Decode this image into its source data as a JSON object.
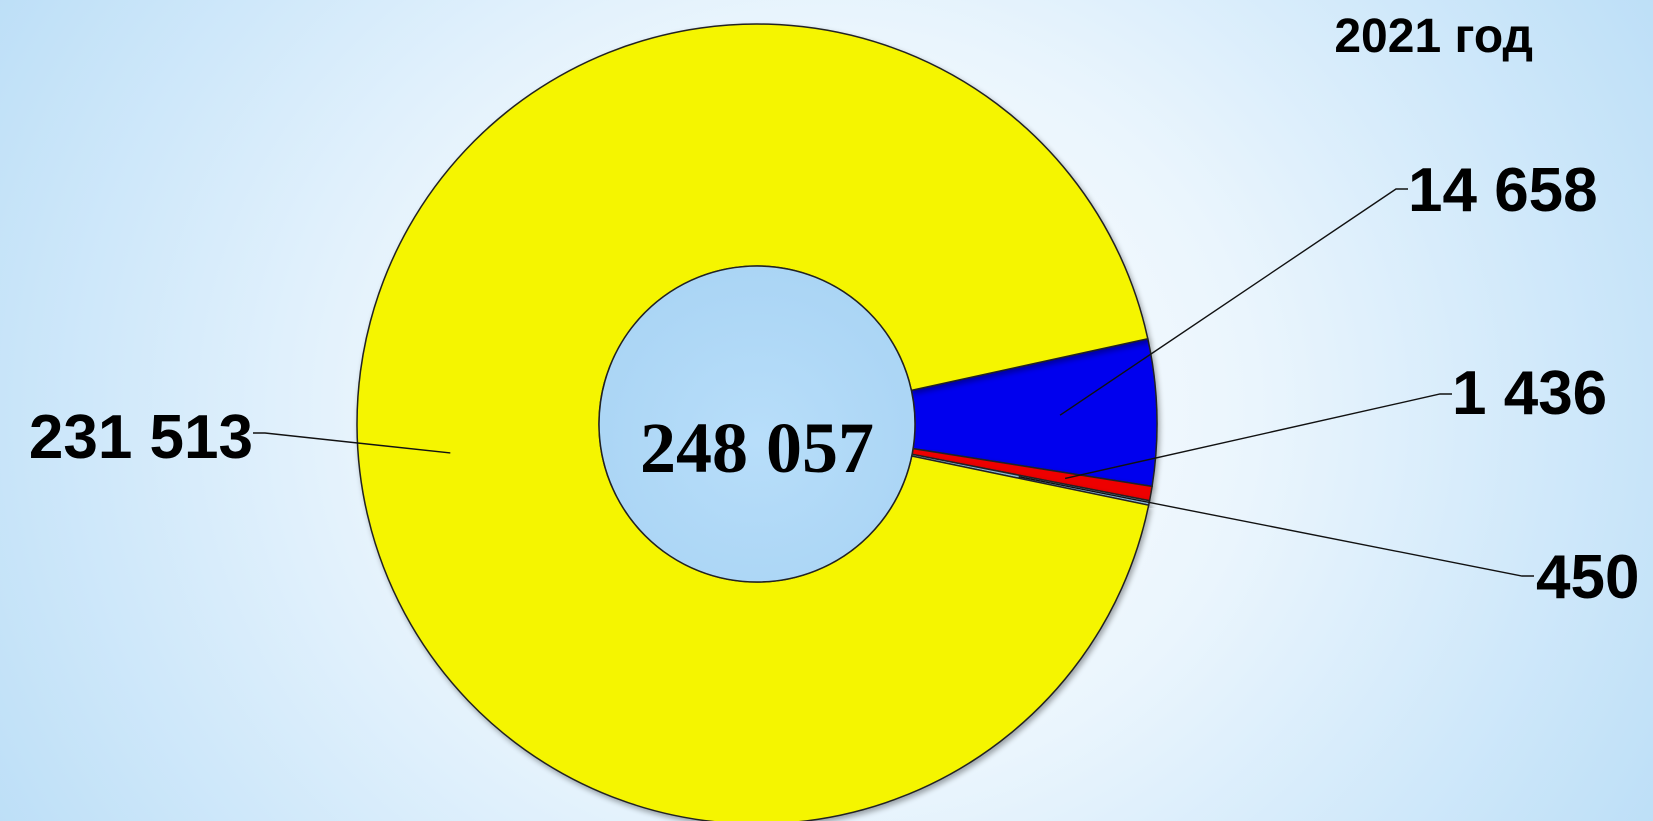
{
  "chart_data": {
    "type": "pie",
    "title": "2021 год",
    "total_label": "248 057",
    "slices": [
      {
        "label": "231 513",
        "value": 231513,
        "color": "#f5f500"
      },
      {
        "label": "14 658",
        "value": 14658,
        "color": "#0000ee"
      },
      {
        "label": "1 436",
        "value": 1436,
        "color": "#ee0000"
      },
      {
        "label": "450",
        "value": 450,
        "color": "#8fbfe0"
      }
    ]
  }
}
